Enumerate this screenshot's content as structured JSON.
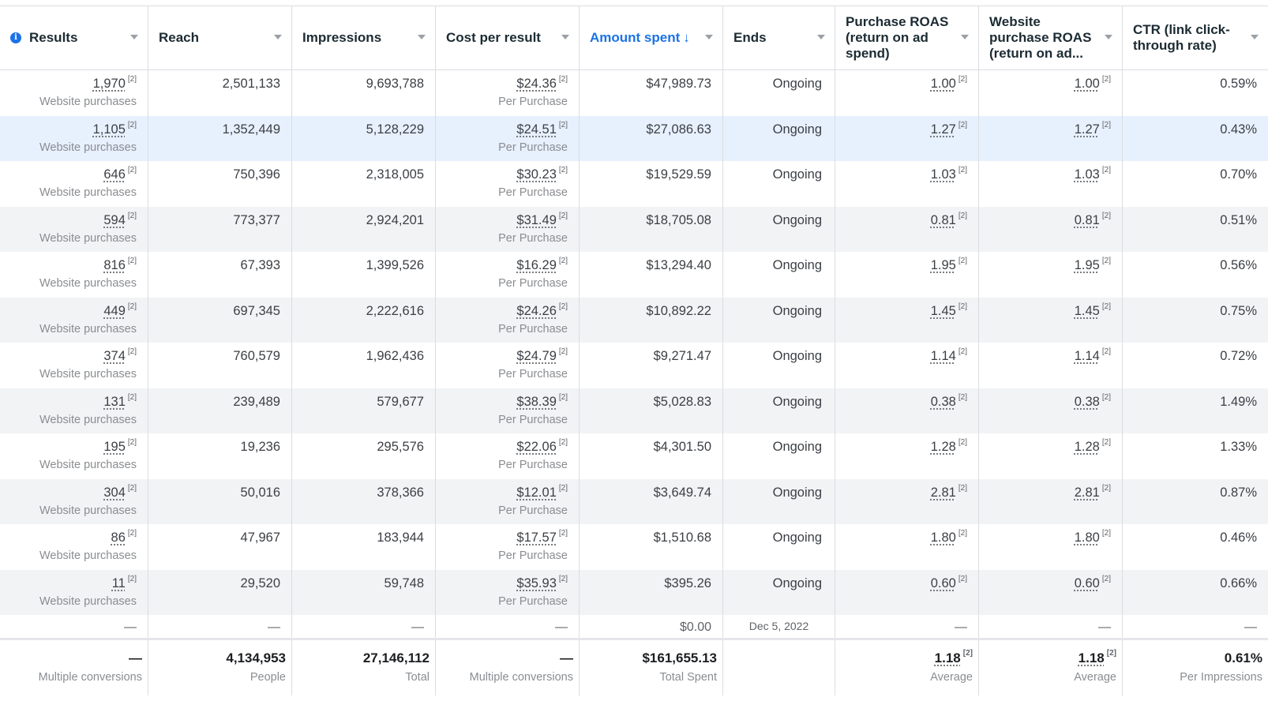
{
  "columns": [
    {
      "label": "Results",
      "icon": "info-icon"
    },
    {
      "label": "Reach"
    },
    {
      "label": "Impressions"
    },
    {
      "label": "Cost per result"
    },
    {
      "label": "Amount spent",
      "sort": "↓"
    },
    {
      "label": "Ends"
    },
    {
      "label": "Purchase ROAS (return on ad spend)"
    },
    {
      "label": "Website purchase ROAS (return on ad..."
    },
    {
      "label": "CTR (link click-through rate)"
    }
  ],
  "rows": [
    {
      "results": "1,970",
      "results_sub": "Website purchases",
      "reach": "2,501,133",
      "impressions": "9,693,788",
      "cpr": "$24.36",
      "cpr_sub": "Per Purchase",
      "spent": "$47,989.73",
      "ends": "Ongoing",
      "roas": "1.00",
      "web_roas": "1.00",
      "ctr": "0.59%"
    },
    {
      "results": "1,105",
      "results_sub": "Website purchases",
      "reach": "1,352,449",
      "impressions": "5,128,229",
      "cpr": "$24.51",
      "cpr_sub": "Per Purchase",
      "spent": "$27,086.63",
      "ends": "Ongoing",
      "roas": "1.27",
      "web_roas": "1.27",
      "ctr": "0.43%"
    },
    {
      "results": "646",
      "results_sub": "Website purchases",
      "reach": "750,396",
      "impressions": "2,318,005",
      "cpr": "$30.23",
      "cpr_sub": "Per Purchase",
      "spent": "$19,529.59",
      "ends": "Ongoing",
      "roas": "1.03",
      "web_roas": "1.03",
      "ctr": "0.70%"
    },
    {
      "results": "594",
      "results_sub": "Website purchases",
      "reach": "773,377",
      "impressions": "2,924,201",
      "cpr": "$31.49",
      "cpr_sub": "Per Purchase",
      "spent": "$18,705.08",
      "ends": "Ongoing",
      "roas": "0.81",
      "web_roas": "0.81",
      "ctr": "0.51%"
    },
    {
      "results": "816",
      "results_sub": "Website purchases",
      "reach": "67,393",
      "impressions": "1,399,526",
      "cpr": "$16.29",
      "cpr_sub": "Per Purchase",
      "spent": "$13,294.40",
      "ends": "Ongoing",
      "roas": "1.95",
      "web_roas": "1.95",
      "ctr": "0.56%"
    },
    {
      "results": "449",
      "results_sub": "Website purchases",
      "reach": "697,345",
      "impressions": "2,222,616",
      "cpr": "$24.26",
      "cpr_sub": "Per Purchase",
      "spent": "$10,892.22",
      "ends": "Ongoing",
      "roas": "1.45",
      "web_roas": "1.45",
      "ctr": "0.75%"
    },
    {
      "results": "374",
      "results_sub": "Website purchases",
      "reach": "760,579",
      "impressions": "1,962,436",
      "cpr": "$24.79",
      "cpr_sub": "Per Purchase",
      "spent": "$9,271.47",
      "ends": "Ongoing",
      "roas": "1.14",
      "web_roas": "1.14",
      "ctr": "0.72%"
    },
    {
      "results": "131",
      "results_sub": "Website purchases",
      "reach": "239,489",
      "impressions": "579,677",
      "cpr": "$38.39",
      "cpr_sub": "Per Purchase",
      "spent": "$5,028.83",
      "ends": "Ongoing",
      "roas": "0.38",
      "web_roas": "0.38",
      "ctr": "1.49%"
    },
    {
      "results": "195",
      "results_sub": "Website purchases",
      "reach": "19,236",
      "impressions": "295,576",
      "cpr": "$22.06",
      "cpr_sub": "Per Purchase",
      "spent": "$4,301.50",
      "ends": "Ongoing",
      "roas": "1.28",
      "web_roas": "1.28",
      "ctr": "1.33%"
    },
    {
      "results": "304",
      "results_sub": "Website purchases",
      "reach": "50,016",
      "impressions": "378,366",
      "cpr": "$12.01",
      "cpr_sub": "Per Purchase",
      "spent": "$3,649.74",
      "ends": "Ongoing",
      "roas": "2.81",
      "web_roas": "2.81",
      "ctr": "0.87%"
    },
    {
      "results": "86",
      "results_sub": "Website purchases",
      "reach": "47,967",
      "impressions": "183,944",
      "cpr": "$17.57",
      "cpr_sub": "Per Purchase",
      "spent": "$1,510.68",
      "ends": "Ongoing",
      "roas": "1.80",
      "web_roas": "1.80",
      "ctr": "0.46%"
    },
    {
      "results": "11",
      "results_sub": "Website purchases",
      "reach": "29,520",
      "impressions": "59,748",
      "cpr": "$35.93",
      "cpr_sub": "Per Purchase",
      "spent": "$395.26",
      "ends": "Ongoing",
      "roas": "0.60",
      "web_roas": "0.60",
      "ctr": "0.66%"
    }
  ],
  "footnote_marker": "[2]",
  "last_row": {
    "results": "—",
    "reach": "—",
    "impressions": "—",
    "cpr": "—",
    "spent": "$0.00",
    "ends": "Dec 5, 2022",
    "roas": "—",
    "web_roas": "—",
    "ctr": "—"
  },
  "totals": {
    "results": "—",
    "results_sub": "Multiple conversions",
    "reach": "4,134,953",
    "reach_sub": "People",
    "impressions": "27,146,112",
    "impressions_sub": "Total",
    "cpr": "—",
    "cpr_sub": "Multiple conversions",
    "spent": "$161,655.13",
    "spent_sub": "Total Spent",
    "ends": "",
    "roas": "1.18",
    "roas_sub": "Average",
    "web_roas": "1.18",
    "web_roas_sub": "Average",
    "ctr": "0.61%",
    "ctr_sub": "Per Impressions"
  },
  "colors": {
    "accent": "#1a73e8",
    "selected_row": "#e7f0fd",
    "alt_row": "#f2f3f5"
  }
}
